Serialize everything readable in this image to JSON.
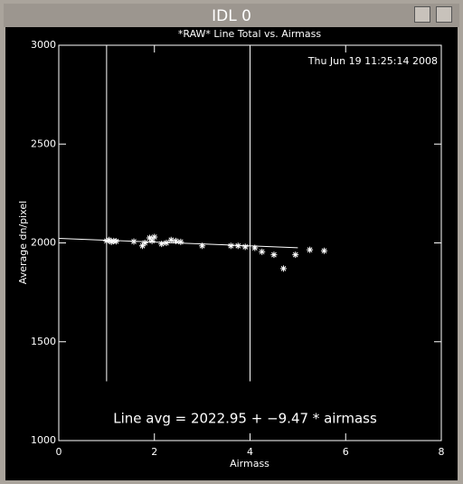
{
  "window": {
    "title": "IDL 0"
  },
  "chart_data": {
    "type": "scatter",
    "title": "*RAW* Line Total vs. Airmass",
    "timestamp": "Thu Jun 19 11:25:14 2008",
    "xlabel": "Airmass",
    "ylabel": "Average dn/pixel",
    "annotation": "Line avg = 2022.95 + −9.47 * airmass",
    "xlim": [
      0,
      8
    ],
    "ylim": [
      1000,
      3000
    ],
    "xticks": [
      0,
      2,
      4,
      6,
      8
    ],
    "yticks": [
      1000,
      1500,
      2000,
      2500,
      3000
    ],
    "color": "#ffffff",
    "x": [
      1.0,
      1.05,
      1.1,
      1.15,
      1.2,
      1.57,
      1.75,
      1.8,
      1.9,
      1.95,
      2.0,
      2.15,
      2.25,
      2.35,
      2.45,
      2.55,
      3.0,
      3.6,
      3.75,
      3.9,
      4.1,
      4.25,
      4.5,
      4.7,
      4.95,
      5.25,
      5.55
    ],
    "values": [
      2010,
      2015,
      2005,
      2010,
      2008,
      2007,
      1985,
      2000,
      2025,
      2010,
      2030,
      1995,
      2000,
      2015,
      2010,
      2005,
      1985,
      1985,
      1985,
      1980,
      1975,
      1955,
      1940,
      1870,
      1940,
      1965,
      1960
    ],
    "fit": {
      "intercept": 2022.95,
      "slope": -9.47,
      "xrange": [
        0,
        5
      ]
    },
    "vlines": [
      1,
      4
    ],
    "vline_range": [
      1300,
      3000
    ]
  }
}
